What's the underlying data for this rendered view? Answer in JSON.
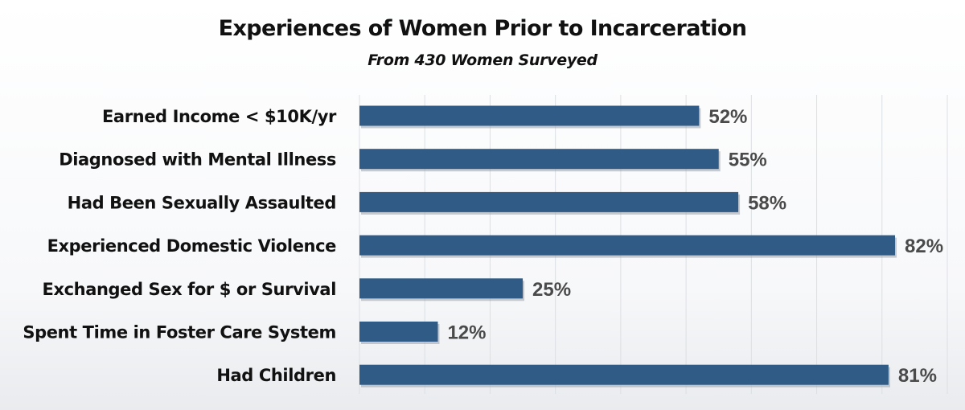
{
  "chart_data": {
    "type": "bar",
    "orientation": "horizontal",
    "title": "Experiences of Women Prior to Incarceration",
    "subtitle": "From 430 Women Surveyed",
    "categories": [
      "Earned Income < $10K/yr",
      "Diagnosed with Mental Illness",
      "Had Been Sexually Assaulted",
      "Experienced Domestic Violence",
      "Exchanged Sex for $ or Survival",
      "Spent Time in Foster Care System",
      "Had Children"
    ],
    "values": [
      52,
      55,
      58,
      82,
      25,
      12,
      81
    ],
    "value_labels": [
      "52%",
      "55%",
      "58%",
      "82%",
      "25%",
      "12%",
      "81%"
    ],
    "xlim": [
      0,
      90
    ],
    "grid": true,
    "bar_color": "#2f5b86",
    "bar_shadow_color": "#9aa3ad"
  }
}
